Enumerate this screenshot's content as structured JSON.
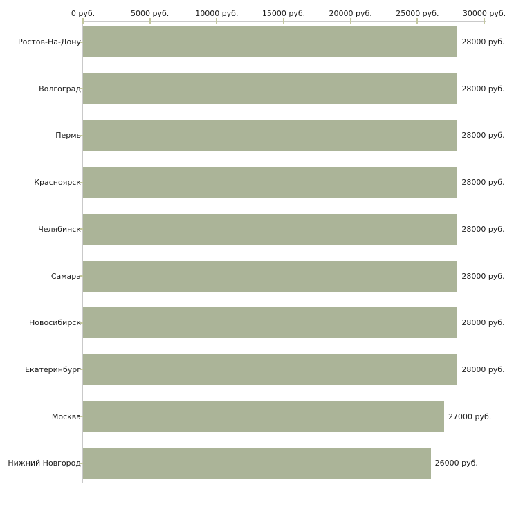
{
  "chart_data": {
    "type": "bar",
    "orientation": "horizontal",
    "title": "",
    "xlabel": "",
    "ylabel": "",
    "unit": "руб.",
    "categories": [
      "Ростов-На-Дону",
      "Волгоград",
      "Пермь",
      "Красноярск",
      "Челябинск",
      "Самара",
      "Новосибирск",
      "Екатеринбург",
      "Москва",
      "Нижний Новгород"
    ],
    "values": [
      28000,
      28000,
      28000,
      28000,
      28000,
      28000,
      28000,
      28000,
      27000,
      26000
    ],
    "value_labels": [
      "28000 руб.",
      "28000 руб.",
      "28000 руб.",
      "28000 руб.",
      "28000 руб.",
      "28000 руб.",
      "28000 руб.",
      "28000 руб.",
      "27000 руб.",
      "26000 руб."
    ],
    "x_ticks": [
      0,
      5000,
      10000,
      15000,
      20000,
      25000,
      30000
    ],
    "x_tick_labels": [
      "0 руб.",
      "5000 руб.",
      "10000 руб.",
      "15000 руб.",
      "20000 руб.",
      "25000 руб.",
      "30000 руб."
    ],
    "xlim": [
      0,
      30000
    ],
    "grid": false,
    "legend": false,
    "bar_color": "#abb498",
    "axis_color": "#c9c9c9",
    "tick_color": "#c4c8a0",
    "text_color": "#1a1a1a",
    "background_color": "#ffffff"
  }
}
